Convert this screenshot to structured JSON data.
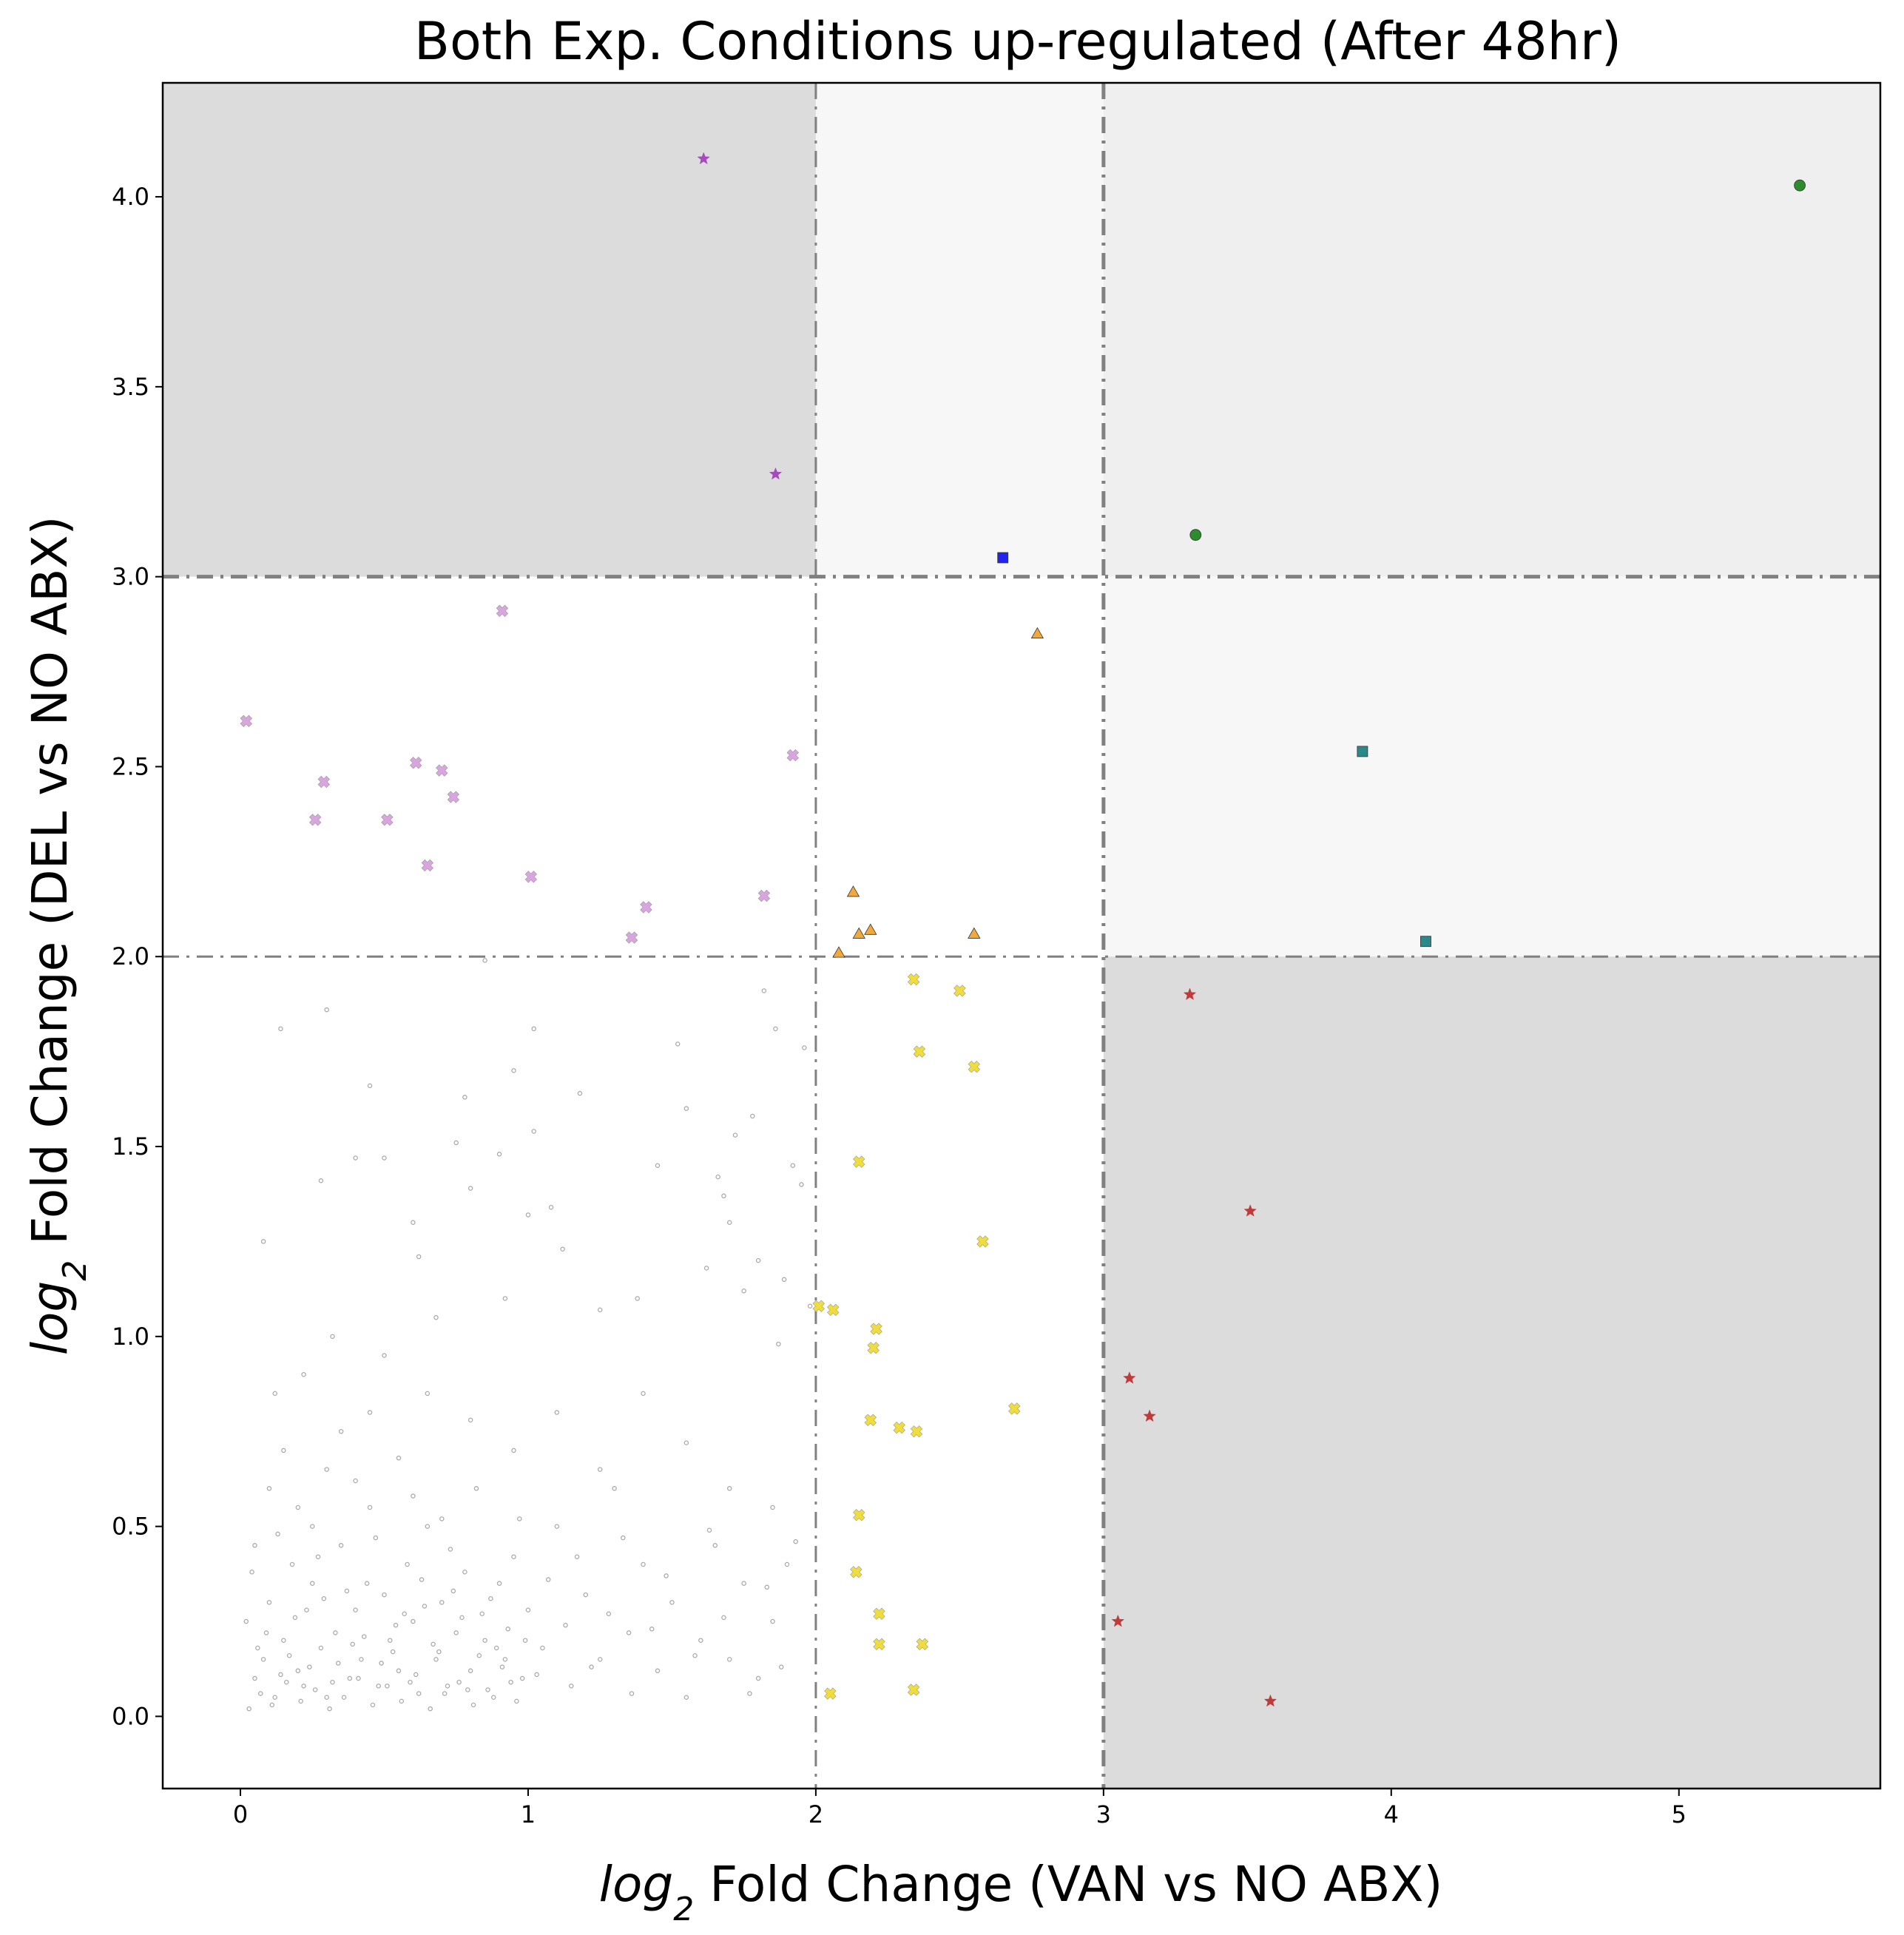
{
  "chart_data": {
    "type": "scatter",
    "title": "Both Exp. Conditions up-regulated (After 48hr)",
    "xlabel_prefix": "log",
    "xlabel_sub": "2",
    "xlabel_suffix": " Fold Change (VAN vs NO ABX)",
    "ylabel_prefix": "log",
    "ylabel_sub": "2",
    "ylabel_suffix": " Fold Change (DEL vs NO ABX)",
    "xlim": [
      -0.27,
      5.7
    ],
    "ylim": [
      -0.19,
      4.3
    ],
    "xticks": [
      0,
      1,
      2,
      3,
      4,
      5
    ],
    "xtick_labels": [
      "0",
      "1",
      "2",
      "3",
      "4",
      "5"
    ],
    "yticks": [
      0.0,
      0.5,
      1.0,
      1.5,
      2.0,
      2.5,
      3.0,
      3.5,
      4.0
    ],
    "ytick_labels": [
      "0.0",
      "0.5",
      "1.0",
      "1.5",
      "2.0",
      "2.5",
      "3.0",
      "3.5",
      "4.0"
    ],
    "grid": false,
    "threshold_lines": {
      "vertical": [
        {
          "x": 2,
          "style": "thin"
        },
        {
          "x": 3,
          "style": "thick"
        }
      ],
      "horizontal": [
        {
          "y": 2,
          "style": "thin"
        },
        {
          "y": 3,
          "style": "thick"
        }
      ]
    },
    "shaded_regions": [
      {
        "x": [
          -0.27,
          2
        ],
        "y": [
          3,
          4.3
        ],
        "color": "#dcdcdc"
      },
      {
        "x": [
          2,
          3
        ],
        "y": [
          3,
          4.3
        ],
        "color": "#f7f7f7"
      },
      {
        "x": [
          3,
          5.7
        ],
        "y": [
          3,
          4.3
        ],
        "color": "#efefef"
      },
      {
        "x": [
          3,
          5.7
        ],
        "y": [
          2,
          3
        ],
        "color": "#f7f7f7"
      },
      {
        "x": [
          3,
          5.7
        ],
        "y": [
          -0.19,
          2
        ],
        "color": "#dcdcdc"
      }
    ],
    "series": [
      {
        "marker": "star",
        "color": "#a64bbd",
        "points": [
          [
            1.61,
            4.1
          ],
          [
            1.86,
            3.27
          ]
        ]
      },
      {
        "marker": "circle",
        "color": "#2e8b2e",
        "points": [
          [
            5.42,
            4.03
          ],
          [
            3.32,
            3.11
          ]
        ]
      },
      {
        "marker": "square",
        "color": "#2323f0",
        "points": [
          [
            2.65,
            3.05
          ]
        ]
      },
      {
        "marker": "triangle",
        "color": "#f2a93b",
        "points": [
          [
            2.77,
            2.85
          ],
          [
            2.13,
            2.17
          ],
          [
            2.15,
            2.06
          ],
          [
            2.19,
            2.07
          ],
          [
            2.08,
            2.01
          ],
          [
            2.55,
            2.06
          ]
        ]
      },
      {
        "marker": "square",
        "color": "#2a8a8a",
        "points": [
          [
            3.9,
            2.54
          ],
          [
            4.12,
            2.04
          ]
        ]
      },
      {
        "marker": "x",
        "color": "#d9a5df",
        "points": [
          [
            0.02,
            2.62
          ],
          [
            0.91,
            2.91
          ],
          [
            0.29,
            2.46
          ],
          [
            0.61,
            2.51
          ],
          [
            0.7,
            2.49
          ],
          [
            0.74,
            2.42
          ],
          [
            0.26,
            2.36
          ],
          [
            0.51,
            2.36
          ],
          [
            0.65,
            2.24
          ],
          [
            1.01,
            2.21
          ],
          [
            1.41,
            2.13
          ],
          [
            1.36,
            2.05
          ],
          [
            1.82,
            2.16
          ],
          [
            1.92,
            2.53
          ]
        ]
      },
      {
        "marker": "star",
        "color": "#c03a3a",
        "points": [
          [
            3.3,
            1.9
          ],
          [
            3.51,
            1.33
          ],
          [
            3.09,
            0.89
          ],
          [
            3.16,
            0.79
          ],
          [
            3.05,
            0.25
          ],
          [
            3.58,
            0.04
          ]
        ]
      },
      {
        "marker": "x",
        "color": "#f0dd3c",
        "points": [
          [
            2.34,
            1.94
          ],
          [
            2.5,
            1.91
          ],
          [
            2.36,
            1.75
          ],
          [
            2.55,
            1.71
          ],
          [
            2.15,
            1.46
          ],
          [
            2.58,
            1.25
          ],
          [
            2.01,
            1.08
          ],
          [
            2.06,
            1.07
          ],
          [
            2.21,
            1.02
          ],
          [
            2.2,
            0.97
          ],
          [
            2.69,
            0.81
          ],
          [
            2.19,
            0.78
          ],
          [
            2.29,
            0.76
          ],
          [
            2.35,
            0.75
          ],
          [
            2.15,
            0.53
          ],
          [
            2.14,
            0.38
          ],
          [
            2.22,
            0.27
          ],
          [
            2.22,
            0.19
          ],
          [
            2.37,
            0.19
          ],
          [
            2.34,
            0.07
          ],
          [
            2.05,
            0.06
          ]
        ]
      },
      {
        "marker": "dot",
        "color": "#aaaaaa",
        "background": true,
        "points": [
          [
            0.02,
            0.25
          ],
          [
            0.05,
            0.1
          ],
          [
            0.08,
            0.15
          ],
          [
            0.1,
            0.3
          ],
          [
            0.12,
            0.05
          ],
          [
            0.15,
            0.2
          ],
          [
            0.18,
            0.4
          ],
          [
            0.2,
            0.12
          ],
          [
            0.22,
            0.08
          ],
          [
            0.25,
            0.35
          ],
          [
            0.28,
            0.18
          ],
          [
            0.3,
            0.05
          ],
          [
            0.33,
            0.22
          ],
          [
            0.35,
            0.45
          ],
          [
            0.38,
            0.1
          ],
          [
            0.4,
            0.28
          ],
          [
            0.42,
            0.15
          ],
          [
            0.45,
            0.55
          ],
          [
            0.48,
            0.08
          ],
          [
            0.5,
            0.32
          ],
          [
            0.52,
            0.2
          ],
          [
            0.55,
            0.12
          ],
          [
            0.58,
            0.4
          ],
          [
            0.6,
            0.25
          ],
          [
            0.62,
            0.06
          ],
          [
            0.65,
            0.5
          ],
          [
            0.68,
            0.15
          ],
          [
            0.7,
            0.3
          ],
          [
            0.72,
            0.08
          ],
          [
            0.75,
            0.22
          ],
          [
            0.78,
            0.38
          ],
          [
            0.8,
            0.12
          ],
          [
            0.82,
            0.6
          ],
          [
            0.85,
            0.2
          ],
          [
            0.88,
            0.05
          ],
          [
            0.9,
            0.35
          ],
          [
            0.92,
            0.15
          ],
          [
            0.95,
            0.42
          ],
          [
            0.98,
            0.1
          ],
          [
            1.0,
            0.28
          ],
          [
            1.05,
            0.18
          ],
          [
            1.1,
            0.5
          ],
          [
            1.15,
            0.08
          ],
          [
            1.2,
            0.32
          ],
          [
            1.25,
            0.15
          ],
          [
            1.3,
            0.6
          ],
          [
            1.35,
            0.22
          ],
          [
            1.4,
            0.4
          ],
          [
            1.45,
            0.12
          ],
          [
            1.5,
            0.3
          ],
          [
            1.55,
            0.05
          ],
          [
            1.6,
            0.2
          ],
          [
            1.65,
            0.45
          ],
          [
            1.7,
            0.15
          ],
          [
            1.75,
            0.35
          ],
          [
            1.8,
            0.1
          ],
          [
            1.85,
            0.25
          ],
          [
            1.9,
            0.4
          ],
          [
            0.1,
            0.6
          ],
          [
            0.2,
            0.55
          ],
          [
            0.3,
            0.65
          ],
          [
            0.15,
            0.7
          ],
          [
            0.05,
            0.45
          ],
          [
            0.25,
            0.5
          ],
          [
            0.4,
            0.62
          ],
          [
            0.55,
            0.68
          ],
          [
            0.35,
            0.75
          ],
          [
            0.6,
            0.58
          ],
          [
            0.45,
            0.8
          ],
          [
            0.7,
            0.52
          ],
          [
            0.12,
            0.85
          ],
          [
            0.22,
            0.9
          ],
          [
            0.32,
            1.0
          ],
          [
            0.5,
            0.95
          ],
          [
            0.65,
            0.85
          ],
          [
            0.8,
            0.78
          ],
          [
            0.95,
            0.7
          ],
          [
            1.1,
            0.8
          ],
          [
            1.25,
            0.65
          ],
          [
            1.4,
            0.85
          ],
          [
            1.55,
            0.72
          ],
          [
            1.7,
            0.6
          ],
          [
            1.85,
            0.55
          ],
          [
            0.08,
            1.25
          ],
          [
            0.14,
            1.81
          ],
          [
            0.28,
            1.41
          ],
          [
            0.3,
            1.86
          ],
          [
            0.4,
            1.47
          ],
          [
            0.45,
            1.66
          ],
          [
            0.5,
            1.47
          ],
          [
            0.6,
            1.3
          ],
          [
            0.62,
            1.21
          ],
          [
            0.68,
            1.05
          ],
          [
            0.75,
            1.51
          ],
          [
            0.78,
            1.63
          ],
          [
            0.8,
            1.39
          ],
          [
            0.85,
            1.99
          ],
          [
            0.9,
            1.48
          ],
          [
            0.92,
            1.1
          ],
          [
            0.95,
            1.7
          ],
          [
            1.0,
            1.32
          ],
          [
            1.02,
            1.81
          ],
          [
            1.02,
            1.54
          ],
          [
            1.08,
            1.34
          ],
          [
            1.12,
            1.23
          ],
          [
            1.18,
            1.64
          ],
          [
            1.25,
            1.07
          ],
          [
            1.38,
            1.1
          ],
          [
            1.45,
            1.45
          ],
          [
            1.52,
            1.77
          ],
          [
            1.55,
            1.6
          ],
          [
            1.62,
            1.18
          ],
          [
            1.66,
            1.42
          ],
          [
            1.68,
            1.37
          ],
          [
            1.7,
            1.3
          ],
          [
            1.72,
            1.53
          ],
          [
            1.75,
            1.12
          ],
          [
            1.78,
            1.58
          ],
          [
            1.8,
            1.2
          ],
          [
            1.82,
            1.91
          ],
          [
            1.86,
            1.81
          ],
          [
            1.87,
            0.98
          ],
          [
            1.89,
            1.15
          ],
          [
            1.92,
            1.45
          ],
          [
            1.95,
            1.4
          ],
          [
            1.96,
            1.76
          ],
          [
            1.98,
            1.08
          ],
          [
            0.03,
            0.02
          ],
          [
            0.07,
            0.06
          ],
          [
            0.11,
            0.03
          ],
          [
            0.16,
            0.09
          ],
          [
            0.21,
            0.04
          ],
          [
            0.26,
            0.07
          ],
          [
            0.31,
            0.02
          ],
          [
            0.36,
            0.05
          ],
          [
            0.41,
            0.1
          ],
          [
            0.46,
            0.03
          ],
          [
            0.51,
            0.08
          ],
          [
            0.56,
            0.04
          ],
          [
            0.61,
            0.11
          ],
          [
            0.66,
            0.02
          ],
          [
            0.71,
            0.06
          ],
          [
            0.76,
            0.09
          ],
          [
            0.81,
            0.03
          ],
          [
            0.86,
            0.07
          ],
          [
            0.91,
            0.13
          ],
          [
            0.96,
            0.04
          ],
          [
            0.04,
            0.38
          ],
          [
            0.09,
            0.22
          ],
          [
            0.13,
            0.48
          ],
          [
            0.17,
            0.16
          ],
          [
            0.23,
            0.28
          ],
          [
            0.27,
            0.42
          ],
          [
            0.34,
            0.14
          ],
          [
            0.37,
            0.33
          ],
          [
            0.43,
            0.21
          ],
          [
            0.47,
            0.47
          ],
          [
            0.53,
            0.17
          ],
          [
            0.57,
            0.27
          ],
          [
            0.63,
            0.36
          ],
          [
            0.67,
            0.19
          ],
          [
            0.73,
            0.44
          ],
          [
            0.77,
            0.26
          ],
          [
            0.83,
            0.16
          ],
          [
            0.87,
            0.31
          ],
          [
            0.93,
            0.23
          ],
          [
            0.97,
            0.52
          ],
          [
            0.06,
            0.18
          ],
          [
            0.14,
            0.11
          ],
          [
            0.19,
            0.26
          ],
          [
            0.24,
            0.13
          ],
          [
            0.29,
            0.31
          ],
          [
            0.32,
            0.09
          ],
          [
            0.39,
            0.19
          ],
          [
            0.44,
            0.35
          ],
          [
            0.49,
            0.14
          ],
          [
            0.54,
            0.24
          ],
          [
            0.59,
            0.09
          ],
          [
            0.64,
            0.29
          ],
          [
            0.69,
            0.17
          ],
          [
            0.74,
            0.33
          ],
          [
            0.79,
            0.07
          ],
          [
            0.84,
            0.27
          ],
          [
            0.89,
            0.18
          ],
          [
            0.94,
            0.09
          ],
          [
            0.99,
            0.2
          ],
          [
            1.03,
            0.11
          ],
          [
            1.07,
            0.36
          ],
          [
            1.13,
            0.24
          ],
          [
            1.17,
            0.42
          ],
          [
            1.22,
            0.13
          ],
          [
            1.28,
            0.27
          ],
          [
            1.33,
            0.47
          ],
          [
            1.36,
            0.06
          ],
          [
            1.43,
            0.23
          ],
          [
            1.48,
            0.37
          ],
          [
            1.58,
            0.16
          ],
          [
            1.63,
            0.49
          ],
          [
            1.68,
            0.26
          ],
          [
            1.77,
            0.06
          ],
          [
            1.83,
            0.34
          ],
          [
            1.88,
            0.13
          ],
          [
            1.93,
            0.46
          ]
        ]
      }
    ]
  }
}
